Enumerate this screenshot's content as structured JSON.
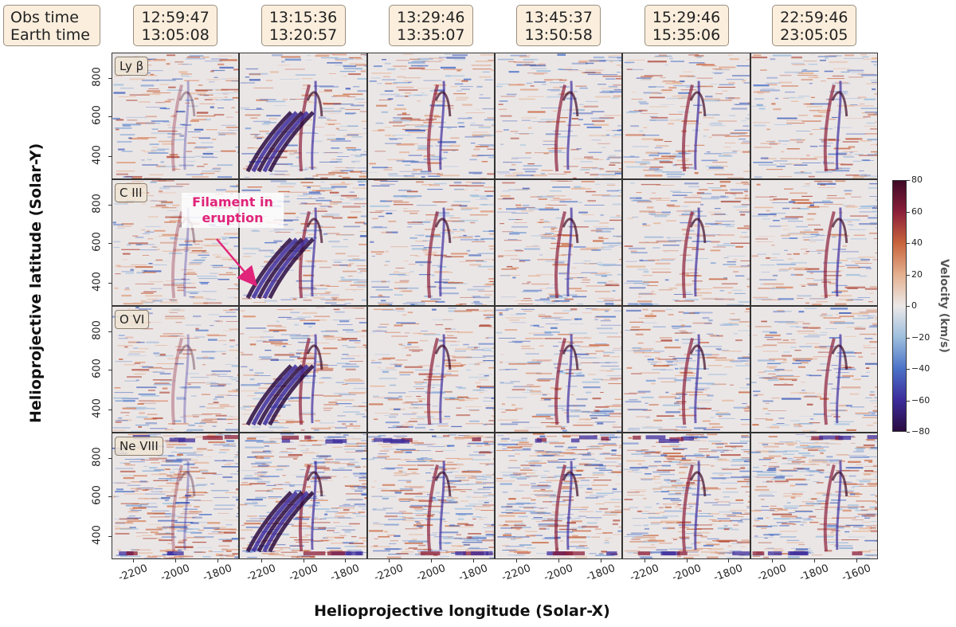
{
  "header": {
    "row_labels": [
      "Obs time",
      "Earth time"
    ],
    "columns": [
      {
        "obs": "12:59:47",
        "earth": "13:05:08"
      },
      {
        "obs": "13:15:36",
        "earth": "13:20:57"
      },
      {
        "obs": "13:29:46",
        "earth": "13:35:07"
      },
      {
        "obs": "13:45:37",
        "earth": "13:50:58"
      },
      {
        "obs": "15:29:46",
        "earth": "15:35:06"
      },
      {
        "obs": "22:59:46",
        "earth": "23:05:05"
      }
    ]
  },
  "spectral_lines": [
    "Ly β",
    "C III",
    "O VI",
    "Ne VIII"
  ],
  "axes": {
    "xlabel": "Helioprojective longitude (Solar-X)",
    "ylabel": "Helioprojective latitude (Solar-Y)",
    "yticks": [
      "800",
      "600",
      "400"
    ],
    "xtick_groups": [
      [
        "-2200",
        "-2000",
        "-1800"
      ],
      [
        "-2200",
        "-2000",
        "-1800"
      ],
      [
        "-2200",
        "-2000",
        "-1800"
      ],
      [
        "-2200",
        "-2000",
        "-1800"
      ],
      [
        "-2200",
        "-2000",
        "-1800"
      ],
      [
        "-2000",
        "-1800",
        "-1600"
      ]
    ]
  },
  "colorbar": {
    "label": "Velocity (km/s)",
    "ticks": [
      "80",
      "60",
      "40",
      "20",
      "0",
      "−20",
      "−40",
      "−60",
      "−80"
    ],
    "min": -80,
    "max": 80,
    "colors": [
      "#2a0b3f",
      "#3d2c9c",
      "#4c73c8",
      "#9dbfdd",
      "#ece8e8",
      "#e4b08f",
      "#c8643c",
      "#8c1f3a",
      "#3e0a26"
    ]
  },
  "annotation": {
    "text": "Filament in eruption",
    "color": "#e0247a"
  }
}
